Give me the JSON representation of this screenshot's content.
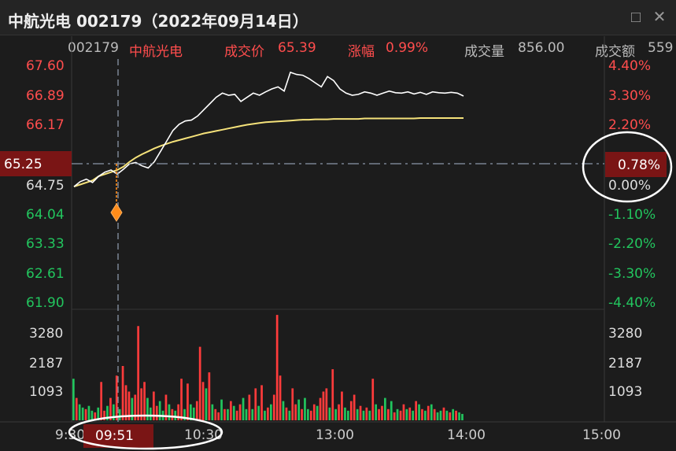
{
  "window": {
    "title": "中航光电 002179（2022年09月14日）",
    "maximize_icon": "maximize-icon",
    "close_icon": "close-icon"
  },
  "info": {
    "code": "002179",
    "name": "中航光电",
    "price_label": "成交价",
    "price_value": "65.39",
    "change_label": "涨幅",
    "change_value": "0.99%",
    "volume_label": "成交量",
    "volume_value": "856.00",
    "amount_label": "成交额",
    "amount_value": "559"
  },
  "axes": {
    "price_labels": [
      "67.60",
      "66.89",
      "66.17",
      "64.75",
      "64.04",
      "63.33",
      "62.61",
      "61.90"
    ],
    "pct_labels": [
      "4.40%",
      "3.30%",
      "2.20%",
      "0.00%",
      "-1.10%",
      "-2.20%",
      "-3.30%",
      "-4.40%"
    ],
    "vol_labels": [
      "3280",
      "2187",
      "1093"
    ],
    "vol_labels_right": [
      "3280",
      "2187",
      "1093"
    ],
    "time_labels": [
      "9:30",
      "10:30",
      "13:00",
      "14:00",
      "15:00"
    ]
  },
  "crosshair": {
    "price": "65.25",
    "pct": "0.78%",
    "time": "09:51"
  },
  "colors": {
    "up": "#ff3b3b",
    "down": "#22c55e",
    "price_line": "#ffffff",
    "avg_line": "#f5e27a",
    "marker": "#ff8c1a",
    "crosshair_bg": "#7a1515"
  },
  "chart_data": {
    "type": "line",
    "prev_close": 64.75,
    "ylim": [
      61.9,
      67.6
    ],
    "price": [
      64.7,
      64.82,
      64.88,
      64.8,
      64.95,
      65.05,
      65.1,
      65.0,
      65.12,
      65.25,
      65.28,
      65.2,
      65.15,
      65.3,
      65.55,
      65.8,
      66.05,
      66.2,
      66.28,
      66.3,
      66.4,
      66.55,
      66.7,
      66.85,
      66.95,
      66.9,
      66.92,
      66.75,
      66.85,
      66.95,
      66.9,
      66.98,
      67.05,
      67.1,
      67.0,
      67.45,
      67.4,
      67.38,
      67.3,
      67.2,
      67.1,
      67.35,
      67.25,
      67.05,
      66.95,
      66.9,
      66.92,
      66.98,
      66.95,
      66.9,
      66.95,
      67.0,
      66.96,
      66.95,
      66.98,
      66.93,
      66.97,
      66.92,
      66.98,
      66.96,
      66.95,
      66.97,
      66.95,
      66.88
    ],
    "avg": [
      64.7,
      64.75,
      64.8,
      64.85,
      64.95,
      65.0,
      65.05,
      65.1,
      65.18,
      65.3,
      65.4,
      65.48,
      65.55,
      65.62,
      65.68,
      65.73,
      65.78,
      65.82,
      65.86,
      65.9,
      65.94,
      65.98,
      66.01,
      66.04,
      66.07,
      66.1,
      66.13,
      66.16,
      66.19,
      66.21,
      66.23,
      66.25,
      66.26,
      66.27,
      66.28,
      66.29,
      66.3,
      66.31,
      66.31,
      66.32,
      66.32,
      66.32,
      66.33,
      66.33,
      66.33,
      66.33,
      66.33,
      66.34,
      66.34,
      66.34,
      66.34,
      66.34,
      66.34,
      66.34,
      66.34,
      66.34,
      66.35,
      66.35,
      66.35,
      66.35,
      66.35,
      66.35,
      66.35,
      66.35
    ],
    "volume": [
      1300,
      700,
      500,
      400,
      350,
      450,
      300,
      250,
      400,
      1200,
      300,
      450,
      700,
      500,
      1400,
      350,
      1700,
      1100,
      900,
      700,
      800,
      2950,
      1000,
      1200,
      700,
      400,
      900,
      450,
      600,
      300,
      800,
      500,
      350,
      300,
      500,
      1300,
      350,
      1150,
      500,
      400,
      600,
      2300,
      1200,
      1000,
      1500,
      500,
      350,
      250,
      650,
      350,
      350,
      600,
      450,
      300,
      500,
      700,
      350,
      800,
      350,
      1000,
      450,
      1100,
      300,
      400,
      500,
      800,
      3300,
      1400,
      600,
      400,
      300,
      1000,
      500,
      650,
      350,
      700,
      350,
      300,
      500,
      450,
      700,
      900,
      1000,
      400,
      1600,
      350,
      500,
      900,
      400,
      300,
      600,
      800,
      350,
      450,
      300,
      400,
      300,
      1300,
      500,
      350,
      450,
      700,
      350,
      600,
      250,
      350,
      300,
      500,
      350,
      400,
      300,
      600,
      500,
      350,
      300,
      450,
      500,
      350,
      250,
      300,
      400,
      300,
      250,
      350,
      300,
      250,
      200
    ],
    "volume_dir": [
      "d",
      "u",
      "d",
      "d",
      "u",
      "d",
      "d",
      "u",
      "d",
      "u",
      "u",
      "d",
      "u",
      "d",
      "u",
      "d",
      "u",
      "u",
      "u",
      "d",
      "u",
      "u",
      "u",
      "u",
      "d",
      "d",
      "u",
      "u",
      "d",
      "d",
      "u",
      "d",
      "u",
      "d",
      "u",
      "u",
      "d",
      "u",
      "d",
      "d",
      "u",
      "u",
      "u",
      "d",
      "u",
      "d",
      "u",
      "u",
      "d",
      "u",
      "d",
      "u",
      "d",
      "u",
      "u",
      "d",
      "d",
      "u",
      "d",
      "u",
      "d",
      "u",
      "d",
      "u",
      "d",
      "u",
      "u",
      "u",
      "d",
      "u",
      "d",
      "u",
      "u",
      "d",
      "u",
      "d",
      "d",
      "u",
      "u",
      "d",
      "u",
      "u",
      "u",
      "d",
      "u",
      "d",
      "u",
      "u",
      "d",
      "d",
      "u",
      "u",
      "d",
      "u",
      "d",
      "u",
      "d",
      "u",
      "d",
      "u",
      "u",
      "d",
      "u",
      "d",
      "u",
      "d",
      "u",
      "u",
      "d",
      "u",
      "d",
      "u",
      "d",
      "u",
      "d",
      "u",
      "d",
      "u",
      "d",
      "d",
      "u",
      "d",
      "u",
      "d",
      "u",
      "d",
      "d"
    ]
  }
}
